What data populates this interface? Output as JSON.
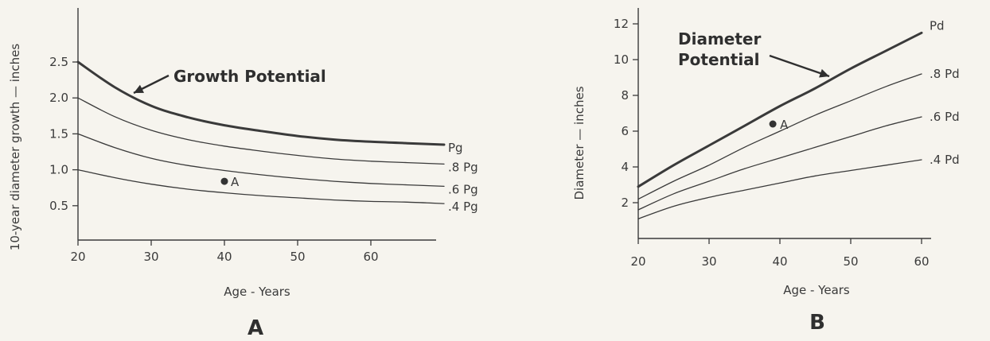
{
  "colors": {
    "background": "#f6f4ee",
    "ink": "#3a3a3a"
  },
  "chart_data": [
    {
      "panel_label": "A",
      "type": "line",
      "xlabel": "Age - Years",
      "ylabel": "10-year diameter growth — inches",
      "xlim": [
        20,
        70
      ],
      "ylim": [
        0,
        2.6
      ],
      "x_ticks": [
        20,
        30,
        40,
        50,
        60
      ],
      "y_ticks": [
        0.5,
        1.0,
        1.5,
        2.0,
        2.5
      ],
      "y_tick_labels": [
        "0.5",
        "1.0",
        "1.5",
        "2.0",
        "2.5"
      ],
      "grid": false,
      "x": [
        20,
        25,
        30,
        35,
        40,
        45,
        50,
        55,
        60,
        65,
        70
      ],
      "series": [
        {
          "name": "Pg",
          "values": [
            2.5,
            2.15,
            1.89,
            1.73,
            1.62,
            1.54,
            1.47,
            1.42,
            1.39,
            1.37,
            1.35
          ],
          "emphasis": true
        },
        {
          "name": ".8 Pg",
          "values": [
            2.0,
            1.74,
            1.55,
            1.42,
            1.33,
            1.26,
            1.2,
            1.15,
            1.12,
            1.1,
            1.08
          ]
        },
        {
          "name": ".6 Pg",
          "values": [
            1.5,
            1.31,
            1.16,
            1.06,
            0.99,
            0.93,
            0.88,
            0.84,
            0.81,
            0.79,
            0.77
          ]
        },
        {
          "name": ".4 Pg",
          "values": [
            1.0,
            0.89,
            0.8,
            0.73,
            0.68,
            0.64,
            0.61,
            0.58,
            0.56,
            0.55,
            0.53
          ]
        }
      ],
      "points": [
        {
          "label": "A",
          "x": 40,
          "y": 0.84
        }
      ],
      "callout": {
        "text": "Growth Potential",
        "x": 27,
        "y": 2.0
      }
    },
    {
      "panel_label": "B",
      "type": "line",
      "xlabel": "Age - Years",
      "ylabel": "Diameter — inches",
      "xlim": [
        20,
        70
      ],
      "ylim": [
        0,
        13
      ],
      "x_ticks": [
        20,
        30,
        40,
        50,
        60
      ],
      "y_ticks": [
        2,
        4,
        6,
        8,
        10,
        12
      ],
      "y_tick_labels": [
        "2",
        "4",
        "6",
        "8",
        "10",
        "12"
      ],
      "grid": false,
      "x": [
        20,
        25,
        30,
        35,
        40,
        45,
        50,
        55,
        60
      ],
      "series": [
        {
          "name": "Pd",
          "values": [
            2.9,
            4.1,
            5.2,
            6.3,
            7.4,
            8.4,
            9.5,
            10.5,
            11.5
          ],
          "emphasis": true
        },
        {
          "name": ".8 Pd",
          "values": [
            2.2,
            3.2,
            4.1,
            5.1,
            6.0,
            6.9,
            7.7,
            8.5,
            9.2
          ]
        },
        {
          "name": ".6 Pd",
          "values": [
            1.6,
            2.5,
            3.2,
            3.9,
            4.5,
            5.1,
            5.7,
            6.3,
            6.8
          ]
        },
        {
          "name": ".4 Pd",
          "values": [
            1.1,
            1.8,
            2.3,
            2.7,
            3.1,
            3.5,
            3.8,
            4.1,
            4.4
          ]
        }
      ],
      "points": [
        {
          "label": "A",
          "x": 39,
          "y": 6.4
        }
      ],
      "callout": {
        "text": "Diameter Potential",
        "lines": [
          "Diameter",
          "Potential"
        ],
        "x": 47,
        "y": 9.2
      }
    }
  ]
}
